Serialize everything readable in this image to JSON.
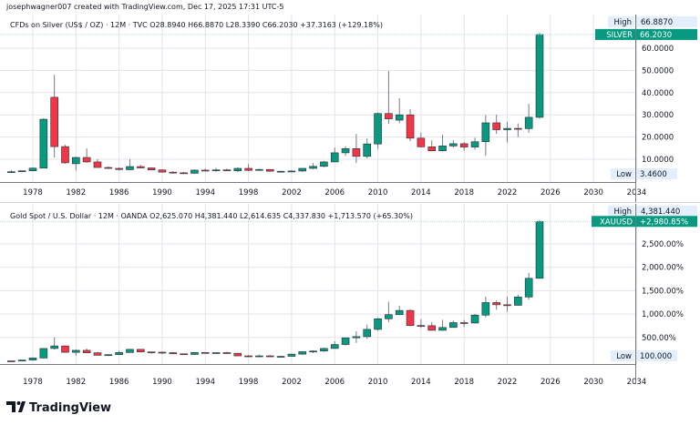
{
  "header": {
    "attribution": "josephwagner007 created with TradingView.com, Dec 17, 2025 17:31 UTC-5"
  },
  "footer": {
    "logo_text": "TradingView"
  },
  "colors": {
    "up": "#089981",
    "down": "#f23645",
    "wick": "#787b86",
    "grid": "#e0e3eb",
    "label_bg": "#e3effd"
  },
  "chart_data": [
    {
      "type": "candlestick",
      "legend": "CFDs on Silver (US$ / OZ) · 12M · TVC  O28.8940  H66.8870  L28.3390  C66.2030  +37.3163 (+129.18%)",
      "symbol_label": "SILVER",
      "last_value": "66.2030",
      "high_label": "High",
      "high_value": "66.8870",
      "low_label": "Low",
      "low_value": "3.4600",
      "y_ticks": [
        "60.0000",
        "50.0000",
        "40.0000",
        "30.0000",
        "20.0000",
        "10.0000"
      ],
      "y_tick_values": [
        60,
        50,
        40,
        30,
        20,
        10
      ],
      "x_ticks": [
        "1978",
        "1982",
        "1986",
        "1990",
        "1994",
        "1998",
        "2002",
        "2006",
        "2010",
        "2014",
        "2018",
        "2022",
        "2026",
        "2030",
        "2034"
      ],
      "ylim": [
        0,
        72
      ],
      "grid": true,
      "candles": [
        [
          1976,
          4.2,
          5.1,
          3.8,
          4.4
        ],
        [
          1977,
          4.4,
          4.9,
          4.3,
          4.8
        ],
        [
          1978,
          4.8,
          6.3,
          4.8,
          6.0
        ],
        [
          1979,
          6.0,
          28.5,
          5.9,
          28.0
        ],
        [
          1980,
          37.9,
          48.0,
          10.8,
          15.7
        ],
        [
          1981,
          15.7,
          16.5,
          8.0,
          8.4
        ],
        [
          1982,
          8.0,
          11.2,
          5.0,
          10.8
        ],
        [
          1983,
          10.8,
          14.9,
          8.4,
          8.8
        ],
        [
          1984,
          8.8,
          10.0,
          6.2,
          6.3
        ],
        [
          1985,
          6.3,
          6.8,
          5.6,
          5.9
        ],
        [
          1986,
          5.9,
          6.3,
          5.0,
          5.4
        ],
        [
          1987,
          5.3,
          10.0,
          5.2,
          6.7
        ],
        [
          1988,
          6.7,
          7.5,
          6.0,
          6.1
        ],
        [
          1989,
          6.1,
          6.3,
          5.0,
          5.2
        ],
        [
          1990,
          5.2,
          5.4,
          4.0,
          4.2
        ],
        [
          1991,
          4.2,
          4.6,
          3.5,
          3.9
        ],
        [
          1992,
          3.9,
          4.3,
          3.6,
          3.7
        ],
        [
          1993,
          3.7,
          5.4,
          3.5,
          5.1
        ],
        [
          1994,
          5.1,
          5.8,
          4.6,
          4.9
        ],
        [
          1995,
          4.9,
          6.1,
          4.4,
          5.2
        ],
        [
          1996,
          5.2,
          5.8,
          4.7,
          4.8
        ],
        [
          1997,
          4.8,
          6.3,
          4.2,
          5.9
        ],
        [
          1998,
          5.9,
          7.8,
          4.6,
          5.0
        ],
        [
          1999,
          5.0,
          5.8,
          4.9,
          5.4
        ],
        [
          2000,
          5.4,
          5.6,
          4.6,
          4.6
        ],
        [
          2001,
          4.6,
          4.8,
          4.0,
          4.6
        ],
        [
          2002,
          4.6,
          5.1,
          4.2,
          4.7
        ],
        [
          2003,
          4.7,
          6.0,
          4.3,
          5.9
        ],
        [
          2004,
          5.9,
          8.3,
          5.5,
          6.8
        ],
        [
          2005,
          6.8,
          9.2,
          6.4,
          8.8
        ],
        [
          2006,
          8.8,
          15.2,
          8.7,
          12.9
        ],
        [
          2007,
          12.9,
          15.8,
          11.5,
          14.8
        ],
        [
          2008,
          14.8,
          21.4,
          8.4,
          11.3
        ],
        [
          2009,
          11.3,
          19.4,
          10.4,
          16.9
        ],
        [
          2010,
          16.9,
          31.0,
          14.6,
          30.6
        ],
        [
          2011,
          30.6,
          49.8,
          26.0,
          28.2
        ],
        [
          2012,
          27.6,
          37.5,
          26.2,
          30.0
        ],
        [
          2013,
          30.0,
          32.5,
          18.2,
          19.5
        ],
        [
          2014,
          19.5,
          22.0,
          15.3,
          15.6
        ],
        [
          2015,
          15.6,
          18.5,
          13.6,
          13.8
        ],
        [
          2016,
          13.8,
          21.0,
          13.6,
          16.0
        ],
        [
          2017,
          16.0,
          18.6,
          15.2,
          17.0
        ],
        [
          2018,
          17.0,
          17.7,
          13.9,
          15.5
        ],
        [
          2019,
          15.5,
          19.7,
          14.3,
          17.9
        ],
        [
          2020,
          17.9,
          29.9,
          11.6,
          26.4
        ],
        [
          2021,
          26.4,
          30.0,
          21.4,
          23.3
        ],
        [
          2022,
          23.3,
          26.9,
          17.5,
          23.9
        ],
        [
          2023,
          23.9,
          26.1,
          20.0,
          23.8
        ],
        [
          2024,
          23.8,
          35.0,
          21.9,
          28.9
        ],
        [
          2025,
          28.9,
          66.9,
          28.3,
          66.2
        ]
      ]
    },
    {
      "type": "candlestick",
      "legend": "Gold Spot / U.S. Dollar · 12M · OANDA  O2,625.070  H4,381.440  L2,614.635  C4,337.830  +1,713.570 (+65.30%)",
      "symbol_label": "XAUUSD",
      "last_value": "+2,980.85%",
      "high_label": "High",
      "high_value": "4,381.440",
      "low_label": "Low",
      "low_value": "100.000",
      "y_scale": "percent",
      "y_ticks": [
        "2,500.00%",
        "2,000.00%",
        "1,500.00%",
        "1,000.00%",
        "500.00%"
      ],
      "y_tick_values": [
        2500,
        2000,
        1500,
        1000,
        500
      ],
      "x_ticks": [
        "1978",
        "1982",
        "1986",
        "1990",
        "1994",
        "1998",
        "2002",
        "2006",
        "2010",
        "2014",
        "2018",
        "2022",
        "2026",
        "2030",
        "2034"
      ],
      "ylim": [
        -70,
        3180
      ],
      "grid": true,
      "candles": [
        [
          1976,
          -0.4,
          -0.2,
          -26.8,
          -4.5
        ],
        [
          1977,
          -4.5,
          19.3,
          -7.7,
          17.2
        ],
        [
          1978,
          17.2,
          72.6,
          17.2,
          60.5
        ],
        [
          1979,
          60.5,
          272,
          53.4,
          263.6
        ],
        [
          1980,
          263.6,
          503.7,
          241.6,
          318.7
        ],
        [
          1981,
          318.7,
          325.4,
          177.7,
          182.3
        ],
        [
          1982,
          182.3,
          241.6,
          110.9,
          224.5
        ],
        [
          1983,
          224.5,
          262.9,
          165.6,
          171.6
        ],
        [
          1984,
          171.6,
          188.3,
          118,
          119
        ],
        [
          1985,
          119,
          142.2,
          101.7,
          132.1
        ],
        [
          1986,
          132.1,
          213.9,
          131.5,
          177.6
        ],
        [
          1987,
          177.6,
          256.5,
          177,
          245.5
        ],
        [
          1988,
          245.5,
          245.5,
          180.5,
          191.3
        ],
        [
          1989,
          191.3,
          196.2,
          152.8,
          184.8
        ],
        [
          1990,
          184.8,
          201.8,
          145,
          174.3
        ],
        [
          1991,
          174.3,
          186.2,
          144.3,
          150.8
        ],
        [
          1992,
          150.8,
          155.7,
          134.4,
          136.5
        ],
        [
          1993,
          136.5,
          188.3,
          131.5,
          178.3
        ],
        [
          1994,
          178.3,
          182,
          162.8,
          172.2
        ],
        [
          1995,
          172.2,
          181.2,
          164.2,
          174.9
        ],
        [
          1996,
          174.9,
          194.7,
          160.6,
          162.3
        ],
        [
          1997,
          162.3,
          162.3,
          101,
          106.1
        ],
        [
          1998,
          106.1,
          122.3,
          93.9,
          104.4
        ],
        [
          1999,
          104.4,
          131.5,
          79,
          106.1
        ],
        [
          2000,
          106.1,
          125.1,
          86.8,
          93.6
        ],
        [
          2001,
          93.6,
          108.1,
          81.1,
          96.4
        ],
        [
          2002,
          96.4,
          148.6,
          96.4,
          143.4
        ],
        [
          2003,
          143.4,
          196.4,
          127.3,
          196.3
        ],
        [
          2004,
          196.3,
          223.9,
          166.3,
          209.4
        ],
        [
          2005,
          209.4,
          282.1,
          191.9,
          264.3
        ],
        [
          2006,
          264.3,
          418.4,
          264.3,
          348.9
        ],
        [
          2007,
          348.9,
          497.3,
          328.3,
          492.1
        ],
        [
          2008,
          492.1,
          633.6,
          383.6,
          517.7
        ],
        [
          2009,
          517.7,
          771.4,
          469.6,
          672.4
        ],
        [
          2010,
          672.4,
          916.3,
          641.5,
          898.2
        ],
        [
          2011,
          898.2,
          1264.3,
          829,
          987.3
        ],
        [
          2012,
          987.3,
          1175.5,
          984.5,
          1077.2
        ],
        [
          2013,
          1077.2,
          1103.1,
          738,
          755.4
        ],
        [
          2014,
          755.4,
          888.6,
          703.2,
          751.7
        ],
        [
          2015,
          751.7,
          828.2,
          642.9,
          652.8
        ],
        [
          2016,
          652.8,
          876.5,
          642.9,
          713.8
        ],
        [
          2017,
          713.8,
          863.8,
          713.8,
          816.8
        ],
        [
          2018,
          816.8,
          870.2,
          723.8,
          808.4
        ],
        [
          2019,
          808.4,
          1005.8,
          799.1,
          977.4
        ],
        [
          2020,
          977.4,
          1373.7,
          930.5,
          1245.8
        ],
        [
          2021,
          1245.8,
          1291.3,
          1091,
          1199
        ],
        [
          2022,
          1199,
          1370.1,
          1047,
          1186.9
        ],
        [
          2023,
          1186.9,
          1416.3,
          1181.9,
          1365.1
        ],
        [
          2024,
          1365.1,
          1881.5,
          1309,
          1764.3
        ],
        [
          2025,
          1764.3,
          3011.6,
          1756.9,
          2980.8
        ]
      ]
    }
  ]
}
